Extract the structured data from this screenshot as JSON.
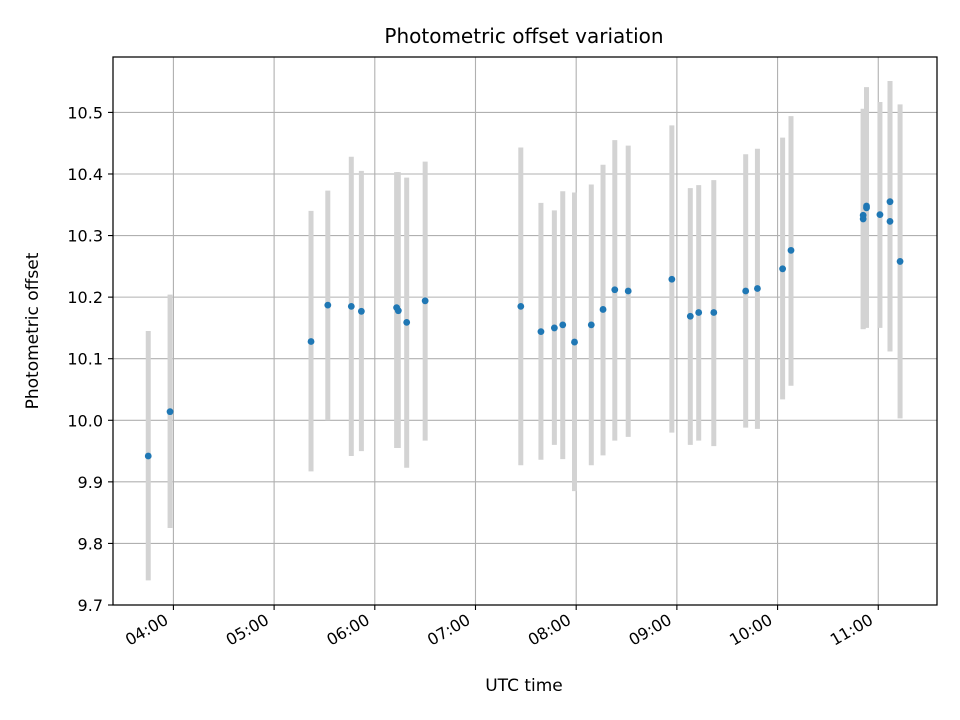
{
  "chart_data": {
    "type": "scatter",
    "title": "Photometric offset variation",
    "xlabel": "UTC time",
    "ylabel": "Photometric offset",
    "xlim": [
      "03:24",
      "11:35"
    ],
    "ylim": [
      9.7,
      10.59
    ],
    "grid": true,
    "x_ticks": [
      "04:00",
      "05:00",
      "06:00",
      "07:00",
      "08:00",
      "09:00",
      "10:00",
      "11:00"
    ],
    "y_ticks": [
      "9.7",
      "9.8",
      "9.9",
      "10.0",
      "10.1",
      "10.2",
      "10.3",
      "10.4",
      "10.5"
    ],
    "colors": {
      "marker": "#1f77b4",
      "errorbar": "#d3d3d3",
      "grid": "#b0b0b0"
    },
    "points": [
      {
        "x": "03:45",
        "y": 9.942,
        "ylow": 9.74,
        "yhigh": 10.145
      },
      {
        "x": "03:58",
        "y": 10.014,
        "ylow": 9.825,
        "yhigh": 10.204
      },
      {
        "x": "05:22",
        "y": 10.128,
        "ylow": 9.917,
        "yhigh": 10.34
      },
      {
        "x": "05:32",
        "y": 10.187,
        "ylow": 10.0,
        "yhigh": 10.373
      },
      {
        "x": "05:46",
        "y": 10.185,
        "ylow": 9.942,
        "yhigh": 10.428
      },
      {
        "x": "05:52",
        "y": 10.177,
        "ylow": 9.95,
        "yhigh": 10.405
      },
      {
        "x": "06:13",
        "y": 10.183,
        "ylow": 9.955,
        "yhigh": 10.403
      },
      {
        "x": "06:14",
        "y": 10.178,
        "ylow": 9.955,
        "yhigh": 10.403
      },
      {
        "x": "06:19",
        "y": 10.159,
        "ylow": 9.923,
        "yhigh": 10.394
      },
      {
        "x": "06:30",
        "y": 10.194,
        "ylow": 9.967,
        "yhigh": 10.42
      },
      {
        "x": "07:27",
        "y": 10.185,
        "ylow": 9.927,
        "yhigh": 10.443
      },
      {
        "x": "07:39",
        "y": 10.144,
        "ylow": 9.936,
        "yhigh": 10.353
      },
      {
        "x": "07:47",
        "y": 10.15,
        "ylow": 9.96,
        "yhigh": 10.341
      },
      {
        "x": "07:52",
        "y": 10.155,
        "ylow": 9.937,
        "yhigh": 10.372
      },
      {
        "x": "07:59",
        "y": 10.127,
        "ylow": 9.885,
        "yhigh": 10.37
      },
      {
        "x": "08:09",
        "y": 10.155,
        "ylow": 9.927,
        "yhigh": 10.383
      },
      {
        "x": "08:16",
        "y": 10.18,
        "ylow": 9.943,
        "yhigh": 10.415
      },
      {
        "x": "08:23",
        "y": 10.212,
        "ylow": 9.967,
        "yhigh": 10.455
      },
      {
        "x": "08:31",
        "y": 10.21,
        "ylow": 9.973,
        "yhigh": 10.446
      },
      {
        "x": "08:57",
        "y": 10.229,
        "ylow": 9.98,
        "yhigh": 10.479
      },
      {
        "x": "09:08",
        "y": 10.169,
        "ylow": 9.96,
        "yhigh": 10.377
      },
      {
        "x": "09:13",
        "y": 10.175,
        "ylow": 9.967,
        "yhigh": 10.382
      },
      {
        "x": "09:22",
        "y": 10.175,
        "ylow": 9.958,
        "yhigh": 10.39
      },
      {
        "x": "09:41",
        "y": 10.21,
        "ylow": 9.988,
        "yhigh": 10.432
      },
      {
        "x": "09:48",
        "y": 10.214,
        "ylow": 9.986,
        "yhigh": 10.441
      },
      {
        "x": "10:03",
        "y": 10.246,
        "ylow": 10.034,
        "yhigh": 10.459
      },
      {
        "x": "10:08",
        "y": 10.276,
        "ylow": 10.056,
        "yhigh": 10.494
      },
      {
        "x": "10:51",
        "y": 10.333,
        "ylow": 10.148,
        "yhigh": 10.506
      },
      {
        "x": "10:51",
        "y": 10.327,
        "ylow": 10.148,
        "yhigh": 10.505
      },
      {
        "x": "10:53",
        "y": 10.348,
        "ylow": 10.154,
        "yhigh": 10.541
      },
      {
        "x": "10:53",
        "y": 10.345,
        "ylow": 10.15,
        "yhigh": 10.54
      },
      {
        "x": "11:01",
        "y": 10.334,
        "ylow": 10.15,
        "yhigh": 10.517
      },
      {
        "x": "11:07",
        "y": 10.355,
        "ylow": 10.112,
        "yhigh": 10.551
      },
      {
        "x": "11:07",
        "y": 10.323,
        "ylow": 10.112,
        "yhigh": 10.535
      },
      {
        "x": "11:13",
        "y": 10.258,
        "ylow": 10.003,
        "yhigh": 10.513
      }
    ]
  }
}
